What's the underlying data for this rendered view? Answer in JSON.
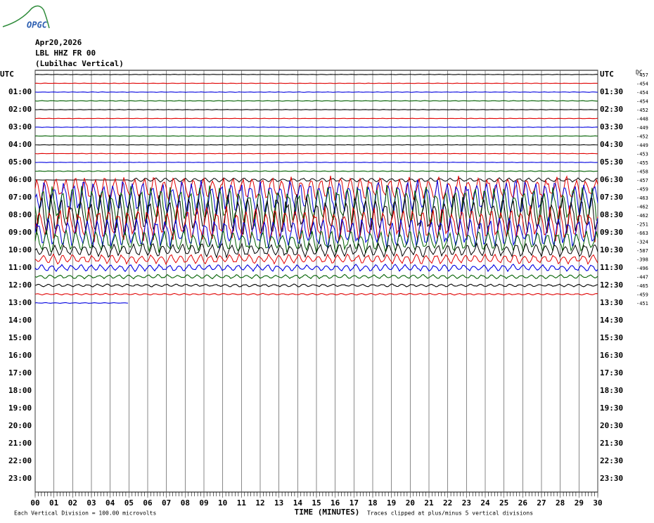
{
  "chart_data": {
    "type": "helicorder",
    "logo": "OPGC",
    "title": "Apr20,2026",
    "subtitle": "LBL HHZ FR 00",
    "location": "(Lubilhac Vertical)",
    "xlabel": "TIME (MINUTES)",
    "footnote_left": "Each Vertical Division =  100.00 microvolts",
    "footnote_right": "Traces clipped at plus/minus 5 vertical divisions",
    "dc_label": "DC",
    "xlim": [
      0,
      30
    ],
    "xticks": [
      {
        "value": 0,
        "label": "00"
      },
      {
        "value": 1,
        "label": "01"
      },
      {
        "value": 2,
        "label": "02"
      },
      {
        "value": 3,
        "label": "03"
      },
      {
        "value": 4,
        "label": "04"
      },
      {
        "value": 5,
        "label": "05"
      },
      {
        "value": 6,
        "label": "06"
      },
      {
        "value": 7,
        "label": "07"
      },
      {
        "value": 8,
        "label": "08"
      },
      {
        "value": 9,
        "label": "09"
      },
      10,
      11,
      12,
      13,
      14,
      15,
      16,
      17,
      18,
      19,
      20,
      21,
      22,
      23,
      24,
      25,
      26,
      27,
      28,
      29,
      30
    ],
    "left_labels": [
      "UTC",
      "01:00",
      "02:00",
      "03:00",
      "04:00",
      "05:00",
      "06:00",
      "07:00",
      "08:00",
      "09:00",
      "10:00",
      "11:00",
      "12:00",
      "13:00",
      "14:00",
      "15:00",
      "16:00",
      "17:00",
      "18:00",
      "19:00",
      "20:00",
      "21:00",
      "22:00",
      "23:00"
    ],
    "right_labels": [
      "UTC",
      "01:30",
      "02:30",
      "03:30",
      "04:30",
      "05:30",
      "06:30",
      "07:30",
      "08:30",
      "09:30",
      "10:30",
      "11:30",
      "12:30",
      "13:30",
      "14:30",
      "15:30",
      "16:30",
      "17:30",
      "18:30",
      "19:30",
      "20:30",
      "21:30",
      "22:30",
      "23:30"
    ],
    "trace_colors": [
      "#000000",
      "#e00000",
      "#0000e0",
      "#006000"
    ],
    "dc": [
      -457,
      -454,
      -454,
      -454,
      -452,
      -448,
      -449,
      -452,
      -449,
      -453,
      -455,
      -458,
      -457,
      -459,
      -463,
      -462,
      -462,
      -251,
      -663,
      -324,
      -587,
      -398,
      -496,
      -447,
      -465,
      -459,
      -451
    ]
  }
}
